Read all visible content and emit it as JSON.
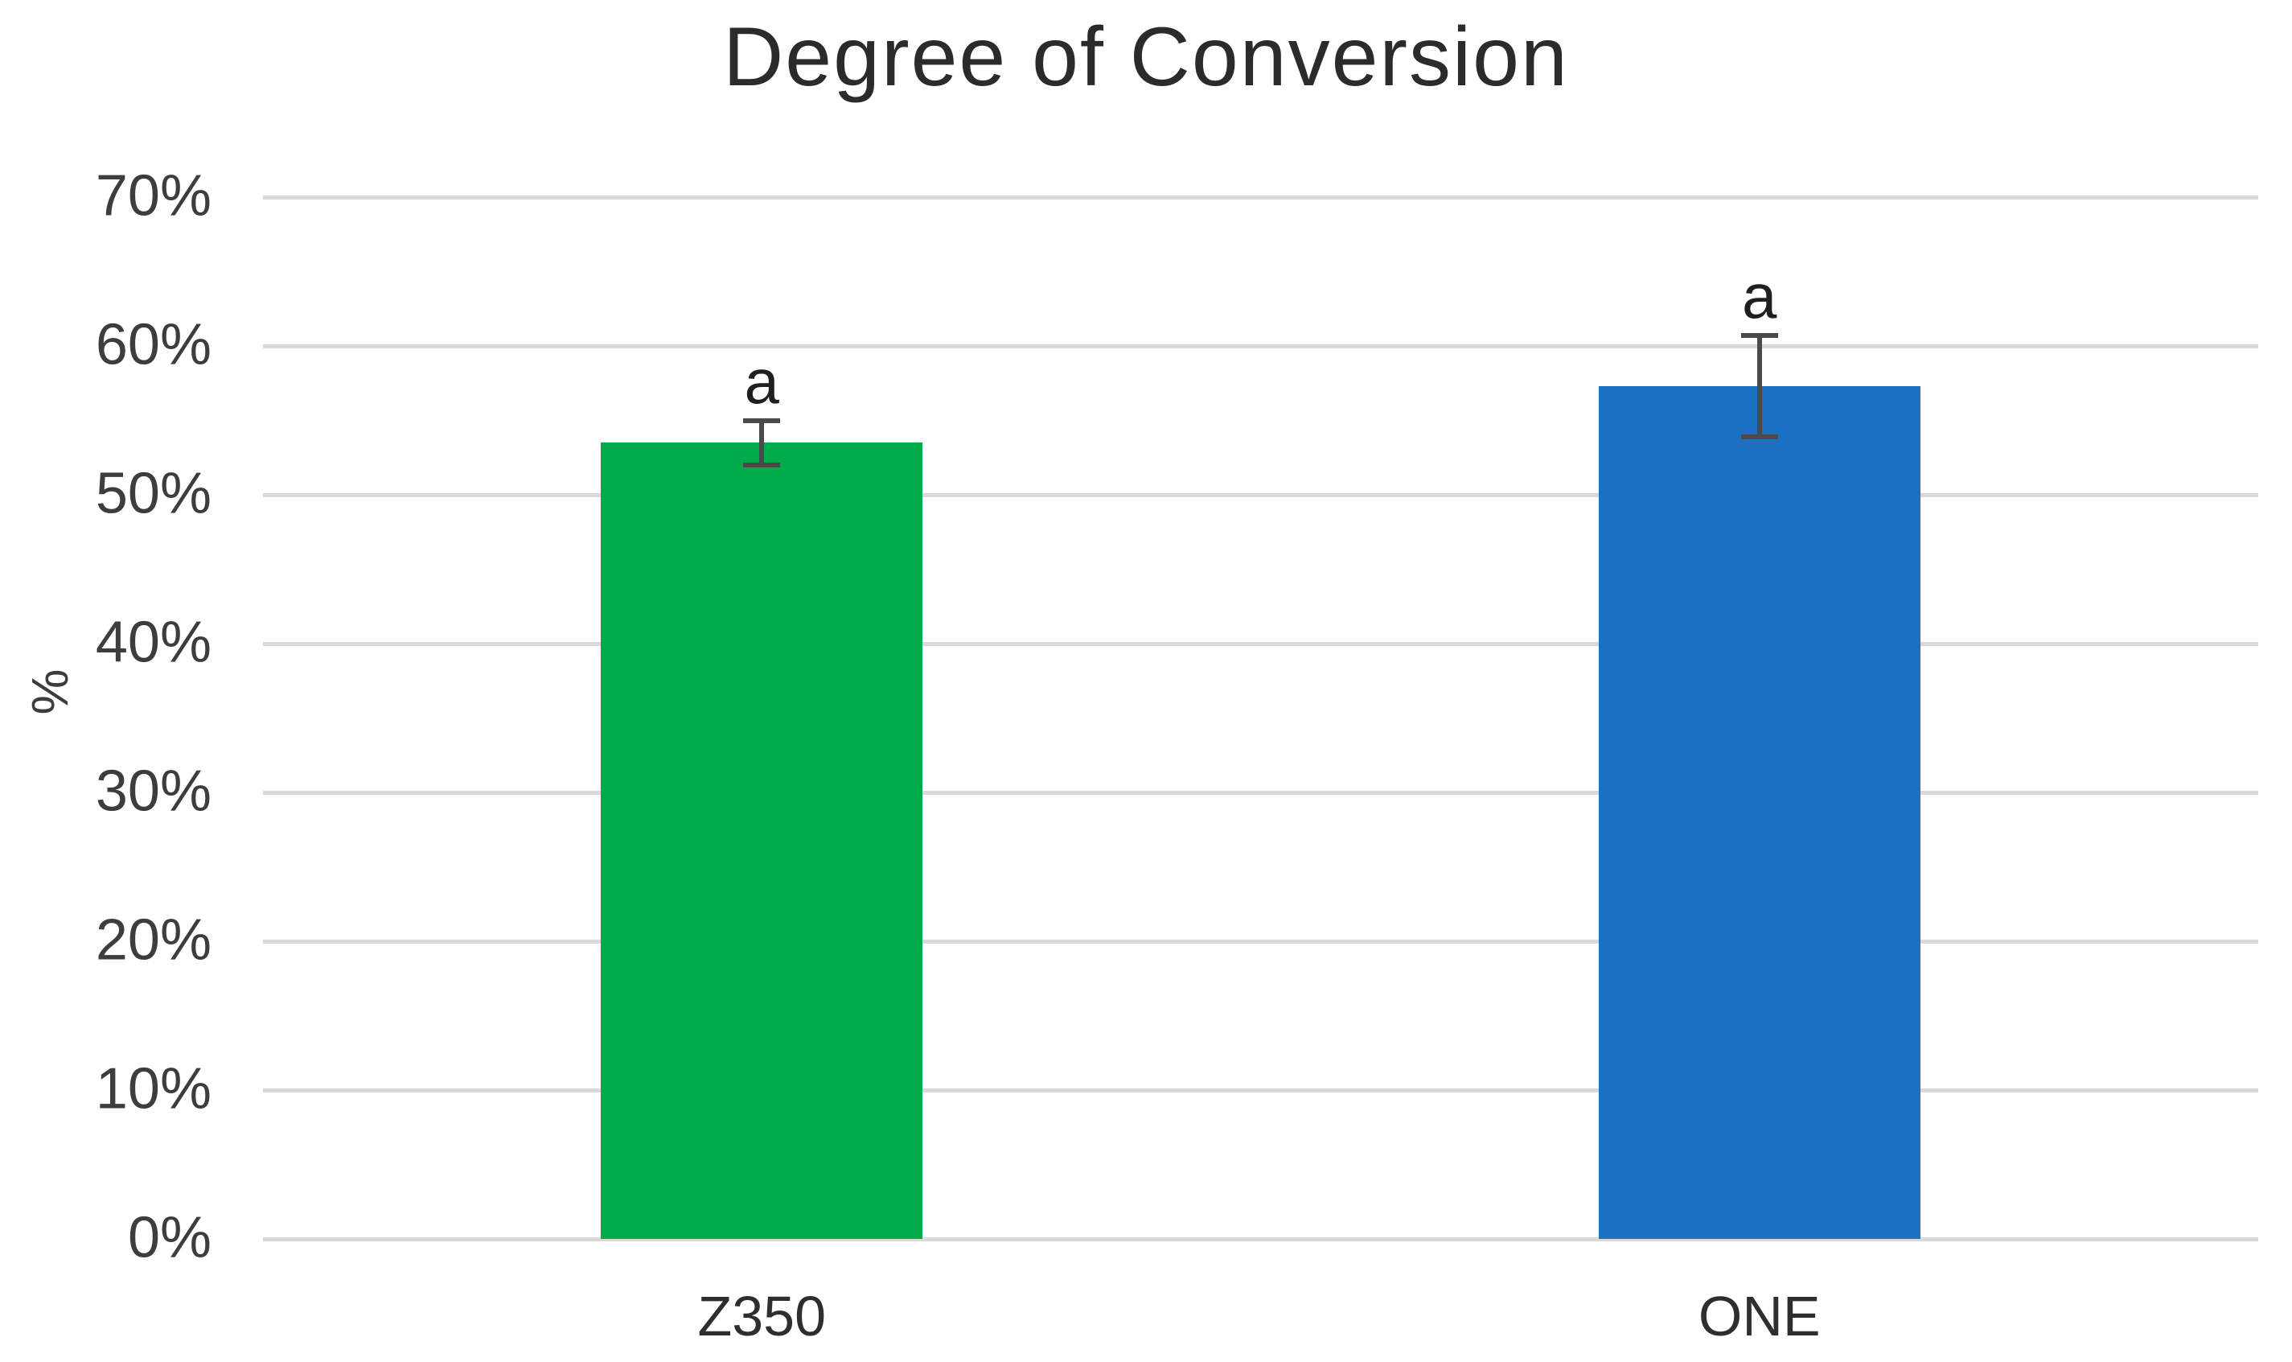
{
  "chart_data": {
    "type": "bar",
    "title": "Degree of Conversion",
    "ylabel": "%",
    "xlabel": "",
    "categories": [
      "Z350",
      "ONE"
    ],
    "series": [
      {
        "name": "Degree of Conversion",
        "values": [
          53.5,
          57.3
        ],
        "errors": [
          1.5,
          3.4
        ],
        "colors": [
          "#00AC49",
          "#1C70C4"
        ],
        "point_labels": [
          "a",
          "a"
        ]
      }
    ],
    "ylim": [
      0,
      70
    ],
    "ytick_labels": [
      "0%",
      "10%",
      "20%",
      "30%",
      "40%",
      "50%",
      "60%",
      "70%"
    ],
    "ytick_format": "percent",
    "grid": true,
    "legend": "none",
    "gridline_color": "#d9d9d9",
    "error_bar_color": "#4a4a4a",
    "background_color": "#ffffff"
  }
}
